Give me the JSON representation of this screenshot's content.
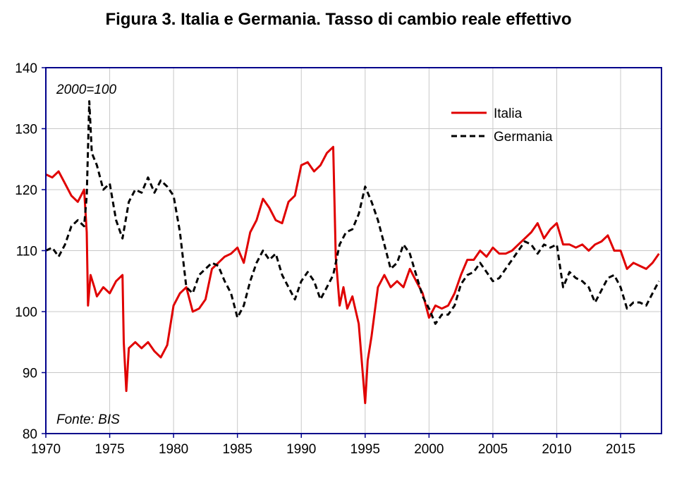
{
  "chart_data": {
    "type": "line",
    "title": "Figura 3. Italia e Germania. Tasso di cambio reale effettivo",
    "note_base": "2000=100",
    "note_source": "Fonte: BIS",
    "xlim": [
      1970,
      2018.2
    ],
    "ylim": [
      80,
      140
    ],
    "x_ticks": [
      1970,
      1975,
      1980,
      1985,
      1990,
      1995,
      2000,
      2005,
      2010,
      2015
    ],
    "y_ticks": [
      80,
      90,
      100,
      110,
      120,
      130,
      140
    ],
    "grid": true,
    "legend_position": "top-right",
    "colors": {
      "italia": "#e00000",
      "germania": "#000000",
      "axis": "#00008b",
      "grid": "#c8c8c8"
    },
    "series": [
      {
        "name": "Italia",
        "style": "solid",
        "x": [
          1970.0,
          1970.5,
          1971.0,
          1971.5,
          1972.0,
          1972.5,
          1973.0,
          1973.2,
          1973.3,
          1973.5,
          1973.8,
          1974.0,
          1974.5,
          1975.0,
          1975.5,
          1976.0,
          1976.1,
          1976.3,
          1976.5,
          1977.0,
          1977.5,
          1978.0,
          1978.5,
          1979.0,
          1979.5,
          1980.0,
          1980.5,
          1981.0,
          1981.5,
          1982.0,
          1982.5,
          1983.0,
          1983.5,
          1984.0,
          1984.5,
          1985.0,
          1985.5,
          1986.0,
          1986.5,
          1987.0,
          1987.5,
          1988.0,
          1988.5,
          1989.0,
          1989.5,
          1990.0,
          1990.5,
          1991.0,
          1991.5,
          1992.0,
          1992.5,
          1992.7,
          1993.0,
          1993.3,
          1993.6,
          1994.0,
          1994.5,
          1995.0,
          1995.2,
          1995.5,
          1996.0,
          1996.5,
          1997.0,
          1997.5,
          1998.0,
          1998.5,
          1999.0,
          1999.5,
          2000.0,
          2000.5,
          2001.0,
          2001.5,
          2002.0,
          2002.5,
          2003.0,
          2003.5,
          2004.0,
          2004.5,
          2005.0,
          2005.5,
          2006.0,
          2006.5,
          2007.0,
          2007.5,
          2008.0,
          2008.5,
          2009.0,
          2009.5,
          2010.0,
          2010.5,
          2011.0,
          2011.5,
          2012.0,
          2012.5,
          2013.0,
          2013.5,
          2014.0,
          2014.5,
          2015.0,
          2015.5,
          2016.0,
          2016.5,
          2017.0,
          2017.5,
          2018.0
        ],
        "values": [
          122.5,
          122.0,
          123.0,
          121.0,
          119.0,
          118.0,
          120.0,
          113.0,
          101.0,
          106.0,
          104.0,
          102.5,
          104.0,
          103.0,
          105.0,
          106.0,
          95.0,
          87.0,
          94.0,
          95.0,
          94.0,
          95.0,
          93.5,
          92.5,
          94.5,
          101.0,
          103.0,
          104.0,
          100.0,
          100.5,
          102.0,
          107.0,
          108.0,
          109.0,
          109.5,
          110.5,
          108.0,
          113.0,
          115.0,
          118.5,
          117.0,
          115.0,
          114.5,
          118.0,
          119.0,
          124.0,
          124.5,
          123.0,
          124.0,
          126.0,
          127.0,
          109.0,
          101.0,
          104.0,
          100.5,
          102.5,
          98.0,
          85.0,
          92.0,
          96.0,
          104.0,
          106.0,
          104.0,
          105.0,
          104.0,
          107.0,
          105.0,
          103.0,
          99.0,
          101.0,
          100.5,
          101.0,
          103.0,
          106.0,
          108.5,
          108.5,
          110.0,
          109.0,
          110.5,
          109.5,
          109.5,
          110.0,
          111.0,
          112.0,
          113.0,
          114.5,
          112.0,
          113.5,
          114.5,
          111.0,
          111.0,
          110.5,
          111.0,
          110.0,
          111.0,
          111.5,
          112.5,
          110.0,
          110.0,
          107.0,
          108.0,
          107.5,
          107.0,
          108.0,
          109.5
        ]
      },
      {
        "name": "Germania",
        "style": "dashed",
        "x": [
          1970.0,
          1970.5,
          1971.0,
          1971.5,
          1972.0,
          1972.5,
          1973.0,
          1973.2,
          1973.4,
          1973.6,
          1974.0,
          1974.5,
          1975.0,
          1975.5,
          1976.0,
          1976.5,
          1977.0,
          1977.5,
          1978.0,
          1978.5,
          1979.0,
          1979.5,
          1980.0,
          1980.5,
          1981.0,
          1981.5,
          1982.0,
          1982.5,
          1983.0,
          1983.5,
          1984.0,
          1984.5,
          1985.0,
          1985.5,
          1986.0,
          1986.5,
          1987.0,
          1987.5,
          1988.0,
          1988.5,
          1989.0,
          1989.5,
          1990.0,
          1990.5,
          1991.0,
          1991.5,
          1992.0,
          1992.5,
          1993.0,
          1993.5,
          1994.0,
          1994.5,
          1995.0,
          1995.5,
          1996.0,
          1996.5,
          1997.0,
          1997.5,
          1998.0,
          1998.5,
          1999.0,
          1999.5,
          2000.0,
          2000.5,
          2001.0,
          2001.5,
          2002.0,
          2002.5,
          2003.0,
          2003.5,
          2004.0,
          2004.5,
          2005.0,
          2005.5,
          2006.0,
          2006.5,
          2007.0,
          2007.5,
          2008.0,
          2008.5,
          2009.0,
          2009.5,
          2010.0,
          2010.5,
          2011.0,
          2011.5,
          2012.0,
          2012.5,
          2013.0,
          2013.5,
          2014.0,
          2014.5,
          2015.0,
          2015.5,
          2016.0,
          2016.5,
          2017.0,
          2017.5,
          2018.0
        ],
        "values": [
          110.0,
          110.5,
          109.0,
          111.0,
          114.0,
          115.0,
          114.0,
          119.0,
          134.5,
          126.0,
          124.0,
          120.0,
          121.0,
          115.0,
          112.0,
          118.0,
          120.0,
          119.5,
          122.0,
          119.5,
          121.5,
          120.5,
          119.0,
          113.0,
          104.0,
          103.0,
          106.0,
          107.0,
          108.0,
          107.5,
          105.0,
          103.0,
          99.0,
          101.0,
          105.0,
          108.0,
          110.0,
          108.5,
          109.5,
          106.0,
          104.0,
          102.0,
          105.0,
          106.5,
          105.0,
          102.0,
          104.0,
          106.0,
          111.0,
          113.0,
          113.5,
          116.0,
          120.5,
          118.0,
          115.0,
          111.0,
          107.0,
          108.0,
          111.0,
          109.5,
          106.0,
          102.5,
          100.5,
          98.0,
          99.5,
          99.5,
          101.0,
          104.5,
          106.0,
          106.5,
          108.0,
          106.5,
          105.0,
          105.5,
          107.0,
          108.5,
          110.0,
          111.5,
          111.0,
          109.5,
          111.0,
          110.5,
          111.0,
          104.0,
          106.5,
          105.5,
          105.0,
          104.0,
          101.5,
          103.5,
          105.5,
          106.0,
          104.0,
          100.5,
          101.5,
          101.5,
          101.0,
          103.0,
          105.0
        ]
      }
    ]
  }
}
